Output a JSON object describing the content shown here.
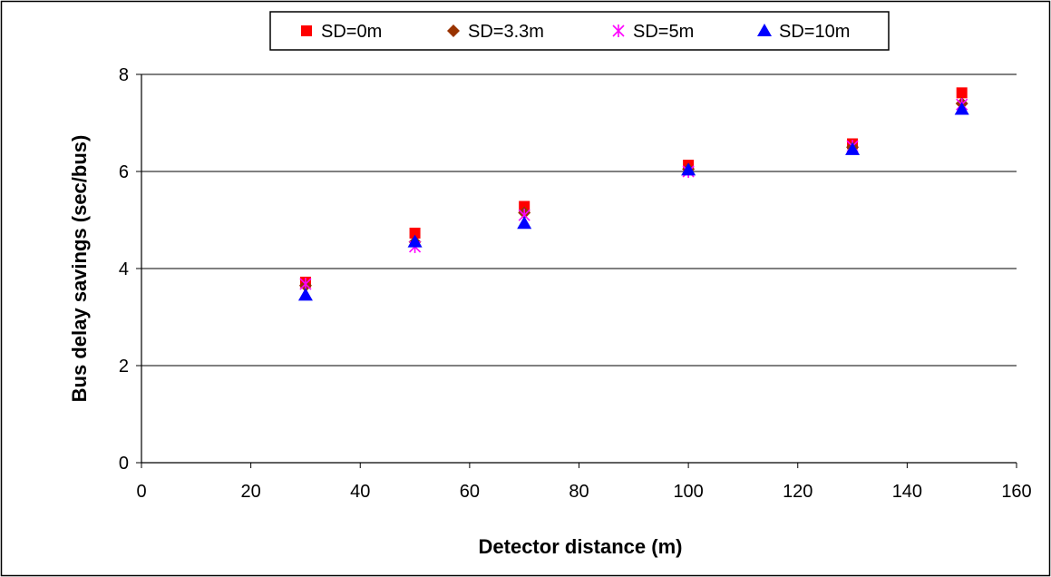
{
  "chart_data": {
    "type": "scatter",
    "title": "",
    "xlabel": "Detector distance (m)",
    "ylabel": "Bus delay savings (sec/bus)",
    "xlim": [
      0,
      160
    ],
    "ylim": [
      0,
      8
    ],
    "x_ticks": [
      0,
      20,
      40,
      60,
      80,
      100,
      120,
      140,
      160
    ],
    "y_ticks": [
      0,
      2,
      4,
      6,
      8
    ],
    "grid": "horizontal major gridlines",
    "legend_position": "top",
    "series": [
      {
        "name": "SD=0m",
        "marker": "square",
        "color": "#ff0000",
        "x": [
          30,
          50,
          70,
          100,
          130,
          150
        ],
        "y": [
          3.72,
          4.73,
          5.28,
          6.13,
          6.57,
          7.62
        ]
      },
      {
        "name": "SD=3.3m",
        "marker": "diamond",
        "color": "#993300",
        "x": [
          30,
          50,
          70,
          100,
          130,
          150
        ],
        "y": [
          3.65,
          4.55,
          5.15,
          6.05,
          6.5,
          7.4
        ]
      },
      {
        "name": "SD=5m",
        "marker": "asterisk",
        "color": "#ff00ff",
        "x": [
          30,
          50,
          70,
          100,
          130,
          150
        ],
        "y": [
          3.68,
          4.45,
          5.1,
          6.0,
          6.52,
          7.38
        ]
      },
      {
        "name": "SD=10m",
        "marker": "triangle",
        "color": "#0000ff",
        "x": [
          30,
          50,
          70,
          100,
          130,
          150
        ],
        "y": [
          3.45,
          4.55,
          4.93,
          6.03,
          6.45,
          7.28
        ]
      }
    ]
  }
}
